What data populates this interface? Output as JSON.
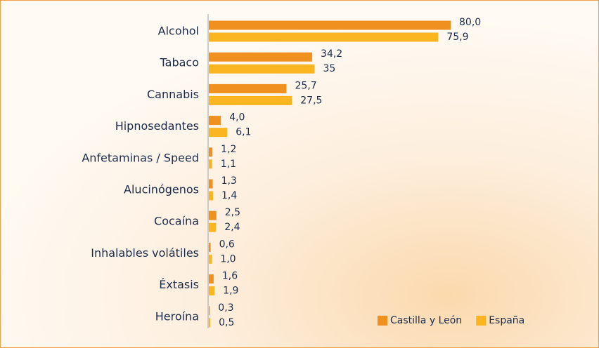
{
  "chart_data": {
    "type": "bar",
    "orientation": "horizontal",
    "categories": [
      "Alcohol",
      "Tabaco",
      "Cannabis",
      "Hipnosedantes",
      "Anfetaminas / Speed",
      "Alucinógenos",
      "Cocaína",
      "Inhalables volátiles",
      "Éxtasis",
      "Heroína"
    ],
    "series": [
      {
        "name": "Castilla y León",
        "color": "#f0901e",
        "values": [
          80.0,
          34.2,
          25.7,
          4.0,
          1.2,
          1.3,
          2.5,
          0.6,
          1.6,
          0.3
        ],
        "value_labels": [
          "80,0",
          "34,2",
          "25,7",
          "4,0",
          "1,2",
          "1,3",
          "2,5",
          "0,6",
          "1,6",
          "0,3"
        ]
      },
      {
        "name": "España",
        "color": "#fbb520",
        "values": [
          75.9,
          35,
          27.5,
          6.1,
          1.1,
          1.4,
          2.4,
          1.0,
          1.9,
          0.5
        ],
        "value_labels": [
          "75,9",
          "35",
          "27,5",
          "6,1",
          "1,1",
          "1,4",
          "2,4",
          "1,0",
          "1,9",
          "0,5"
        ]
      }
    ],
    "legend": "lower right"
  }
}
